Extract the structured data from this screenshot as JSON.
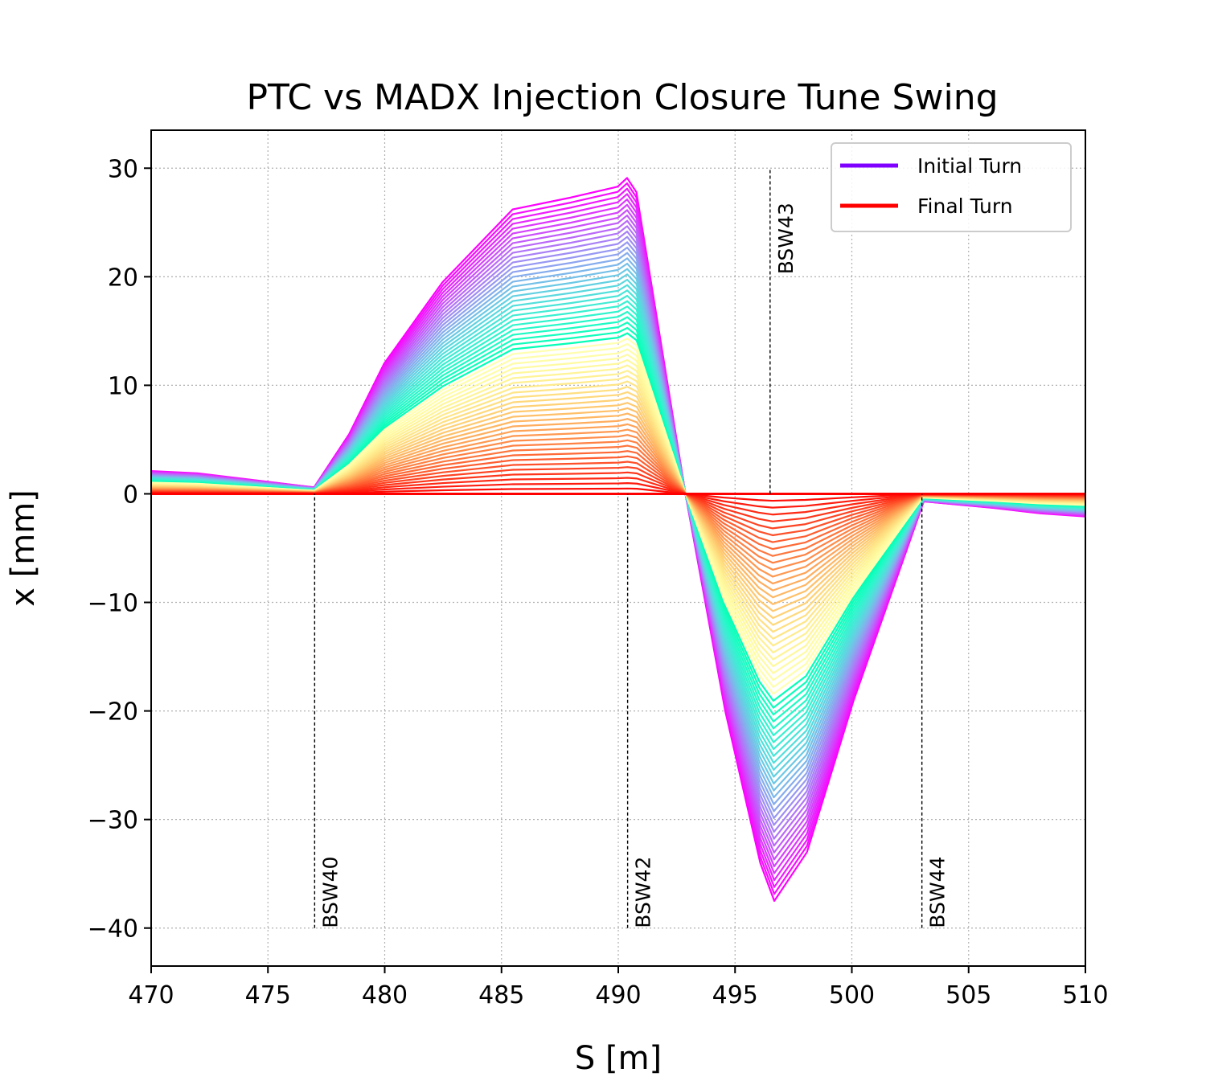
{
  "chart_data": {
    "type": "line",
    "title": "PTC vs MADX Injection Closure Tune Swing",
    "xlabel": "S [m]",
    "ylabel": "x [mm]",
    "xlim": [
      470,
      510
    ],
    "ylim": [
      -43.5,
      33.5
    ],
    "xticks": [
      470,
      475,
      480,
      485,
      490,
      495,
      500,
      505,
      510
    ],
    "yticks": [
      30,
      20,
      10,
      0,
      -10,
      -20,
      -30,
      -40
    ],
    "grid": true,
    "legend_position": "upper-right",
    "colormap": "rainbow",
    "n_turns": 60,
    "legend": [
      {
        "label": "Initial Turn",
        "color": "#8000ff"
      },
      {
        "label": "Final Turn",
        "color": "#ff0000"
      }
    ],
    "series_envelope": {
      "name": "Initial Turn",
      "s": [
        470.0,
        472.0,
        477.0,
        478.5,
        480.0,
        482.5,
        485.5,
        488.0,
        490.0,
        490.4,
        490.8,
        492.9,
        494.5,
        496.0,
        496.6,
        498.0,
        500.0,
        503.0,
        506.0,
        508.0,
        510.0
      ],
      "x": [
        2.1,
        1.9,
        0.6,
        5.5,
        12.0,
        19.5,
        26.2,
        27.3,
        28.3,
        29.1,
        27.8,
        0.0,
        -20.0,
        -34.0,
        -37.5,
        -33.0,
        -19.0,
        -0.7,
        -1.3,
        -1.8,
        -2.1
      ]
    },
    "series_final": {
      "name": "Final Turn",
      "s": [
        470.0,
        510.0
      ],
      "x": [
        0.0,
        0.0
      ]
    },
    "markers": [
      {
        "label": "BSW40",
        "s": 477.0,
        "y_from": -40,
        "y_to": 0,
        "label_pos": "bottom"
      },
      {
        "label": "BSW42",
        "s": 490.4,
        "y_from": -40,
        "y_to": 0,
        "label_pos": "bottom"
      },
      {
        "label": "BSW43",
        "s": 496.5,
        "y_from": 0,
        "y_to": 30,
        "label_pos": "top"
      },
      {
        "label": "BSW44",
        "s": 503.0,
        "y_from": -40,
        "y_to": 0,
        "label_pos": "bottom"
      }
    ]
  }
}
